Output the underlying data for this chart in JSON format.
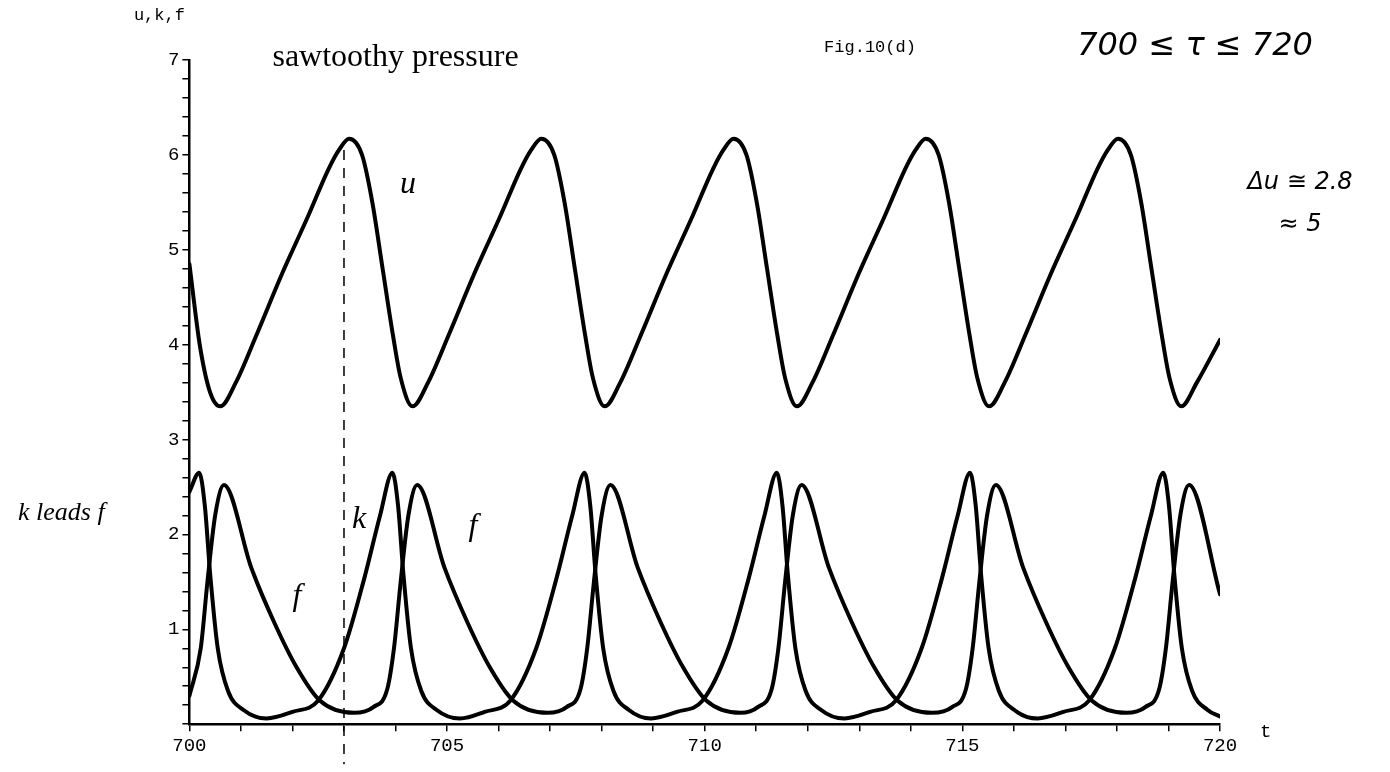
{
  "chart_data": {
    "type": "line",
    "title": "sawtoothy pressure",
    "xlabel": "t",
    "ylabel": "u,k,f",
    "xlim": [
      700,
      720
    ],
    "xticks": [
      700,
      {
        "value": 701,
        "label": null
      },
      {
        "value": 702,
        "label": null
      },
      {
        "value": 703,
        "label": null
      },
      {
        "value": 704,
        "label": null
      },
      705,
      {
        "value": 706,
        "label": null
      },
      {
        "value": 707,
        "label": null
      },
      {
        "value": 708,
        "label": null
      },
      {
        "value": 709,
        "label": null
      },
      710,
      {
        "value": 711,
        "label": null
      },
      {
        "value": 712,
        "label": null
      },
      {
        "value": 713,
        "label": null
      },
      {
        "value": 714,
        "label": null
      },
      715,
      {
        "value": 716,
        "label": null
      },
      {
        "value": 717,
        "label": null
      },
      {
        "value": 718,
        "label": null
      },
      {
        "value": 719,
        "label": null
      },
      720
    ],
    "ylim": [
      0,
      7
    ],
    "yticks": [
      {
        "value": 0,
        "label": null
      },
      {
        "value": 0.2,
        "label": null
      },
      {
        "value": 0.4,
        "label": null
      },
      {
        "value": 0.6,
        "label": null
      },
      {
        "value": 0.8,
        "label": null
      },
      1,
      {
        "value": 1.2,
        "label": null
      },
      {
        "value": 1.4,
        "label": null
      },
      {
        "value": 1.6,
        "label": null
      },
      {
        "value": 1.8,
        "label": null
      },
      2,
      {
        "value": 2.2,
        "label": null
      },
      {
        "value": 2.4,
        "label": null
      },
      {
        "value": 2.6,
        "label": null
      },
      {
        "value": 2.8,
        "label": null
      },
      3,
      {
        "value": 3.2,
        "label": null
      },
      {
        "value": 3.4,
        "label": null
      },
      {
        "value": 3.6,
        "label": null
      },
      {
        "value": 3.8,
        "label": null
      },
      4,
      {
        "value": 4.2,
        "label": null
      },
      {
        "value": 4.4,
        "label": null
      },
      {
        "value": 4.6,
        "label": null
      },
      {
        "value": 4.8,
        "label": null
      },
      5,
      {
        "value": 5.2,
        "label": null
      },
      {
        "value": 5.4,
        "label": null
      },
      {
        "value": 5.6,
        "label": null
      },
      {
        "value": 5.8,
        "label": null
      },
      6,
      {
        "value": 6.2,
        "label": null
      },
      {
        "value": 6.4,
        "label": null
      },
      {
        "value": 6.6,
        "label": null
      },
      {
        "value": 6.8,
        "label": null
      },
      7
    ],
    "grid": false,
    "legend": false,
    "marker": "none",
    "line_style": "solid",
    "series": [
      {
        "color": "#000000",
        "x": [
          700,
          700.2,
          700.4,
          700.6,
          700.9,
          701.3,
          701.8,
          702.3,
          702.7,
          702.9,
          703.1,
          703.35,
          703.55,
          703.75,
          703.95,
          704.1,
          704.33,
          704.63,
          705.03,
          705.53,
          706.03,
          706.43,
          706.63,
          706.83,
          707.08,
          707.28,
          707.48,
          707.68,
          707.83,
          708.06,
          708.36,
          708.76,
          709.26,
          709.76,
          710.16,
          710.36,
          710.56,
          710.81,
          711.01,
          711.21,
          711.41,
          711.56,
          711.79,
          712.09,
          712.49,
          712.99,
          713.49,
          713.89,
          714.09,
          714.29,
          714.54,
          714.74,
          714.94,
          715.14,
          715.29,
          715.52,
          715.82,
          716.22,
          716.72,
          717.22,
          717.62,
          717.82,
          718.02,
          718.27,
          718.47,
          718.67,
          718.87,
          719.02,
          719.25,
          719.55,
          720
        ],
        "values": [
          4.85,
          4.0,
          3.5,
          3.35,
          3.6,
          4.1,
          4.75,
          5.35,
          5.85,
          6.05,
          6.17,
          6.0,
          5.5,
          4.8,
          4.1,
          3.65,
          3.35,
          3.6,
          4.1,
          4.75,
          5.35,
          5.85,
          6.05,
          6.17,
          6.0,
          5.5,
          4.8,
          4.1,
          3.65,
          3.35,
          3.6,
          4.1,
          4.75,
          5.35,
          5.85,
          6.05,
          6.17,
          6.0,
          5.5,
          4.8,
          4.1,
          3.65,
          3.35,
          3.6,
          4.1,
          4.75,
          5.35,
          5.85,
          6.05,
          6.17,
          6.0,
          5.5,
          4.8,
          4.1,
          3.65,
          3.35,
          3.6,
          4.1,
          4.75,
          5.35,
          5.85,
          6.05,
          6.17,
          6.0,
          5.5,
          4.8,
          4.1,
          3.65,
          3.35,
          3.6,
          4.05
        ]
      },
      {
        "color": "#000000",
        "x": [
          700,
          700.19,
          700.3,
          700.4,
          700.55,
          700.75,
          701.05,
          701.5,
          702.0,
          702.5,
          703.0,
          703.4,
          703.7,
          703.94,
          704.05,
          704.15,
          704.3,
          704.5,
          704.8,
          705.25,
          705.73,
          706.23,
          706.73,
          707.13,
          707.43,
          707.67,
          707.78,
          707.88,
          708.03,
          708.23,
          708.53,
          708.96,
          709.46,
          709.96,
          710.46,
          710.86,
          711.16,
          711.4,
          711.51,
          711.61,
          711.76,
          711.96,
          712.26,
          712.71,
          713.21,
          713.71,
          714.21,
          714.61,
          714.91,
          715.15,
          715.26,
          715.36,
          715.51,
          715.71,
          716.01,
          716.46,
          716.96,
          717.46,
          717.96,
          718.36,
          718.66,
          718.9,
          719.01,
          719.11,
          719.26,
          719.46,
          719.76,
          720
        ],
        "values": [
          2.45,
          2.65,
          2.3,
          1.6,
          0.8,
          0.35,
          0.15,
          0.06,
          0.13,
          0.25,
          0.8,
          1.55,
          2.2,
          2.65,
          2.3,
          1.6,
          0.8,
          0.35,
          0.15,
          0.06,
          0.13,
          0.25,
          0.8,
          1.55,
          2.2,
          2.65,
          2.3,
          1.6,
          0.8,
          0.35,
          0.15,
          0.06,
          0.13,
          0.25,
          0.8,
          1.55,
          2.2,
          2.65,
          2.3,
          1.6,
          0.8,
          0.35,
          0.15,
          0.06,
          0.13,
          0.25,
          0.8,
          1.55,
          2.2,
          2.65,
          2.3,
          1.6,
          0.8,
          0.35,
          0.15,
          0.06,
          0.13,
          0.25,
          0.8,
          1.55,
          2.2,
          2.65,
          2.3,
          1.6,
          0.8,
          0.35,
          0.15,
          0.08
        ]
      },
      {
        "color": "#000000",
        "x": [
          700,
          700.22,
          700.35,
          700.5,
          700.67,
          701.2,
          701.64,
          702.08,
          702.53,
          703.2,
          703.57,
          703.84,
          703.97,
          704.1,
          704.25,
          704.42,
          704.95,
          705.39,
          705.83,
          706.28,
          706.95,
          707.32,
          707.59,
          707.72,
          707.85,
          708.0,
          708.17,
          708.7,
          709.14,
          709.58,
          710.03,
          710.7,
          711.03,
          711.3,
          711.43,
          711.56,
          711.71,
          711.88,
          712.41,
          712.85,
          713.29,
          713.74,
          714.41,
          714.8,
          715.07,
          715.2,
          715.33,
          715.48,
          715.65,
          716.18,
          716.62,
          717.06,
          717.51,
          718.18,
          718.55,
          718.82,
          718.95,
          719.08,
          719.23,
          719.4,
          720
        ],
        "values": [
          0.3,
          0.8,
          1.5,
          2.2,
          2.52,
          1.65,
          1.08,
          0.6,
          0.25,
          0.12,
          0.18,
          0.37,
          0.8,
          1.5,
          2.2,
          2.52,
          1.65,
          1.08,
          0.6,
          0.25,
          0.12,
          0.18,
          0.37,
          0.8,
          1.5,
          2.2,
          2.52,
          1.65,
          1.08,
          0.6,
          0.25,
          0.12,
          0.18,
          0.37,
          0.8,
          1.5,
          2.2,
          2.52,
          1.65,
          1.08,
          0.6,
          0.25,
          0.12,
          0.18,
          0.37,
          0.8,
          1.5,
          2.2,
          2.52,
          1.65,
          1.08,
          0.6,
          0.25,
          0.12,
          0.18,
          0.37,
          0.8,
          1.5,
          2.2,
          2.52,
          1.37
        ]
      }
    ],
    "ref_lines": [
      {
        "axis": "x",
        "value": 703,
        "line_style": "dashed",
        "color": "#000000"
      }
    ],
    "annotations": [
      "Fig.10(d)",
      "700 ≤ τ ≤ 720",
      "k leads f",
      "Δu ≅ 2.8",
      "≈ 5",
      "u",
      "k",
      "f",
      "f"
    ]
  }
}
